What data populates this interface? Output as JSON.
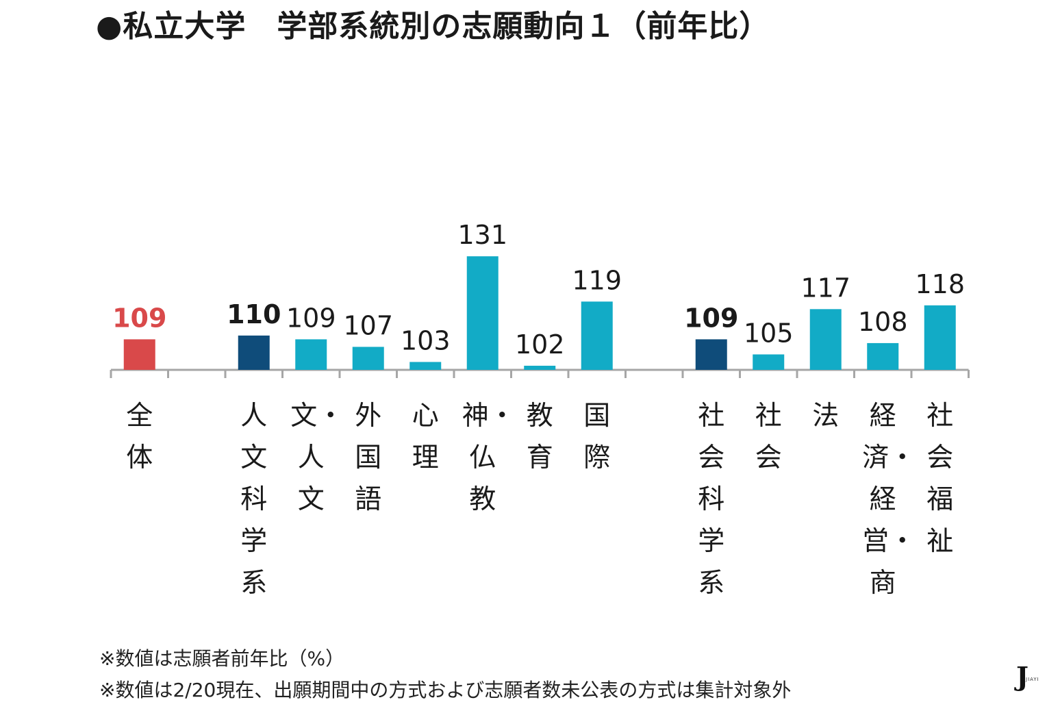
{
  "title": "●私立大学　学部系統別の志願動向１（前年比）",
  "notes": [
    "※数値は志願者前年比（%）",
    "※数値は2/20現在、出願期間中の方式および志願者数未公表の方式は集計対象外"
  ],
  "logo": {
    "mark": "J",
    "text": "JIAYI"
  },
  "colors": {
    "total": "#d9494a",
    "group": "#0f4c7a",
    "item": "#12abc6",
    "axis": "#a6a6a6"
  },
  "chart_data": {
    "type": "bar",
    "title": "",
    "xlabel": "",
    "ylabel": "",
    "ylim": [
      0,
      131
    ],
    "grid": false,
    "legend": "none",
    "categories": [
      "全体",
      "",
      "人文科学系",
      "文・人文",
      "外国語",
      "心理",
      "神・仏教",
      "教育",
      "国際",
      "",
      "社会科学系",
      "社会",
      "法",
      "経済・経営・商",
      "社会福祉"
    ],
    "values": [
      109,
      null,
      110,
      109,
      107,
      103,
      131,
      102,
      119,
      null,
      109,
      105,
      117,
      108,
      118
    ],
    "value_labels": [
      "109",
      "",
      "110",
      "109",
      "107",
      "103",
      "131",
      "102",
      "119",
      "",
      "109",
      "105",
      "117",
      "108",
      "118"
    ],
    "kinds": [
      "total",
      "",
      "group",
      "item",
      "item",
      "item",
      "item",
      "item",
      "item",
      "",
      "group",
      "item",
      "item",
      "item",
      "item"
    ]
  }
}
